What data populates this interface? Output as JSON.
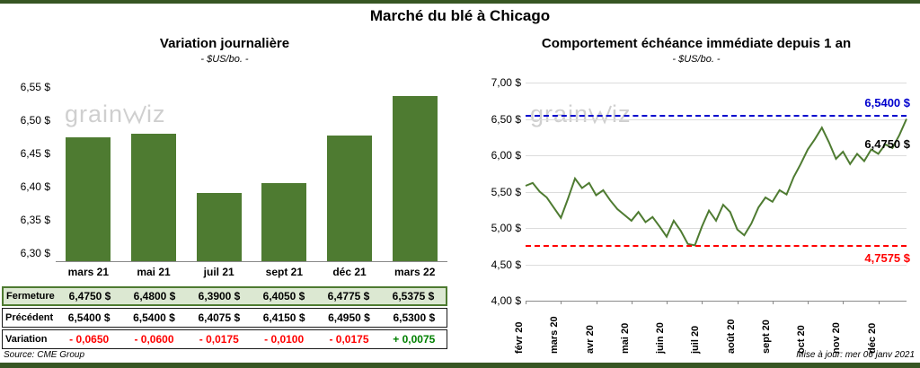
{
  "page": {
    "title": "Marché du blé à Chicago",
    "source": "Source: CME Group",
    "updated": "Mise à jour: mer 06 janv 2021",
    "watermark": "grainwiz",
    "accent_green": "#4e7b31",
    "border_green": "#375623"
  },
  "chart_data": [
    {
      "type": "bar",
      "title": "Variation journalière",
      "subtitle": "- $US/bo. -",
      "categories": [
        "mars 21",
        "mai 21",
        "juil 21",
        "sept 21",
        "déc 21",
        "mars 22"
      ],
      "values": [
        6.475,
        6.48,
        6.39,
        6.405,
        6.4775,
        6.5375
      ],
      "ylim": [
        6.2875,
        6.5625
      ],
      "yticks": [
        6.55,
        6.5,
        6.45,
        6.4,
        6.35,
        6.3
      ],
      "ytick_labels": [
        "6,55 $",
        "6,50 $",
        "6,45 $",
        "6,40 $",
        "6,35 $",
        "6,30 $"
      ],
      "bar_color": "#4e7b31",
      "grid": false,
      "legend": "none"
    },
    {
      "type": "line",
      "title": "Comportement échéance immédiate depuis 1 an",
      "subtitle": "- $US/bo. -",
      "x_labels": [
        "févr 20",
        "mars 20",
        "avr 20",
        "mai 20",
        "juin 20",
        "juil 20",
        "août 20",
        "sept 20",
        "oct 20",
        "nov 20",
        "déc 20"
      ],
      "points_per_month": 5,
      "values": [
        5.58,
        5.62,
        5.5,
        5.42,
        5.28,
        5.14,
        5.4,
        5.68,
        5.55,
        5.62,
        5.45,
        5.52,
        5.38,
        5.26,
        5.18,
        5.1,
        5.22,
        5.08,
        5.15,
        5.02,
        4.88,
        5.1,
        4.96,
        4.78,
        4.76,
        5.02,
        5.24,
        5.1,
        5.32,
        5.22,
        4.98,
        4.9,
        5.06,
        5.28,
        5.42,
        5.36,
        5.52,
        5.46,
        5.7,
        5.88,
        6.08,
        6.22,
        6.38,
        6.18,
        5.95,
        6.05,
        5.88,
        6.02,
        5.92,
        6.08,
        6.02,
        6.15,
        6.1,
        6.28,
        6.5
      ],
      "ylim": [
        4.0,
        7.0
      ],
      "yticks": [
        7.0,
        6.5,
        6.0,
        5.5,
        5.0,
        4.5,
        4.0
      ],
      "ytick_labels": [
        "7,00 $",
        "6,50 $",
        "6,00 $",
        "5,50 $",
        "5,00 $",
        "4,50 $",
        "4,00 $"
      ],
      "line_color": "#4e7b31",
      "grid": true,
      "legend": "none",
      "ref_lines": [
        {
          "value": 6.54,
          "label": "6,5400 $",
          "color": "#0000cd",
          "style": "dashed",
          "label_pos": "above-right"
        },
        {
          "value": 4.7575,
          "label": "4,7575 $",
          "color": "#ff0000",
          "style": "dashed",
          "label_pos": "below-right"
        }
      ],
      "annotation": {
        "label": "6,4750 $",
        "value": 6.15,
        "color": "#000000"
      }
    }
  ],
  "table": {
    "rows": [
      {
        "label": "Fermeture",
        "style": "fermeture",
        "values": [
          "6,4750 $",
          "6,4800 $",
          "6,3900 $",
          "6,4050 $",
          "6,4775 $",
          "6,5375 $"
        ]
      },
      {
        "label": "Précédent",
        "style": "precedent",
        "values": [
          "6,5400 $",
          "6,5400 $",
          "6,4075 $",
          "6,4150 $",
          "6,4950 $",
          "6,5300 $"
        ]
      },
      {
        "label": "Variation",
        "style": "variation",
        "values": [
          "- 0,0650",
          "- 0,0600",
          "- 0,0175",
          "- 0,0100",
          "- 0,0175",
          "+ 0,0075"
        ]
      }
    ],
    "negative_color": "#ff0000",
    "positive_color": "#008000"
  }
}
